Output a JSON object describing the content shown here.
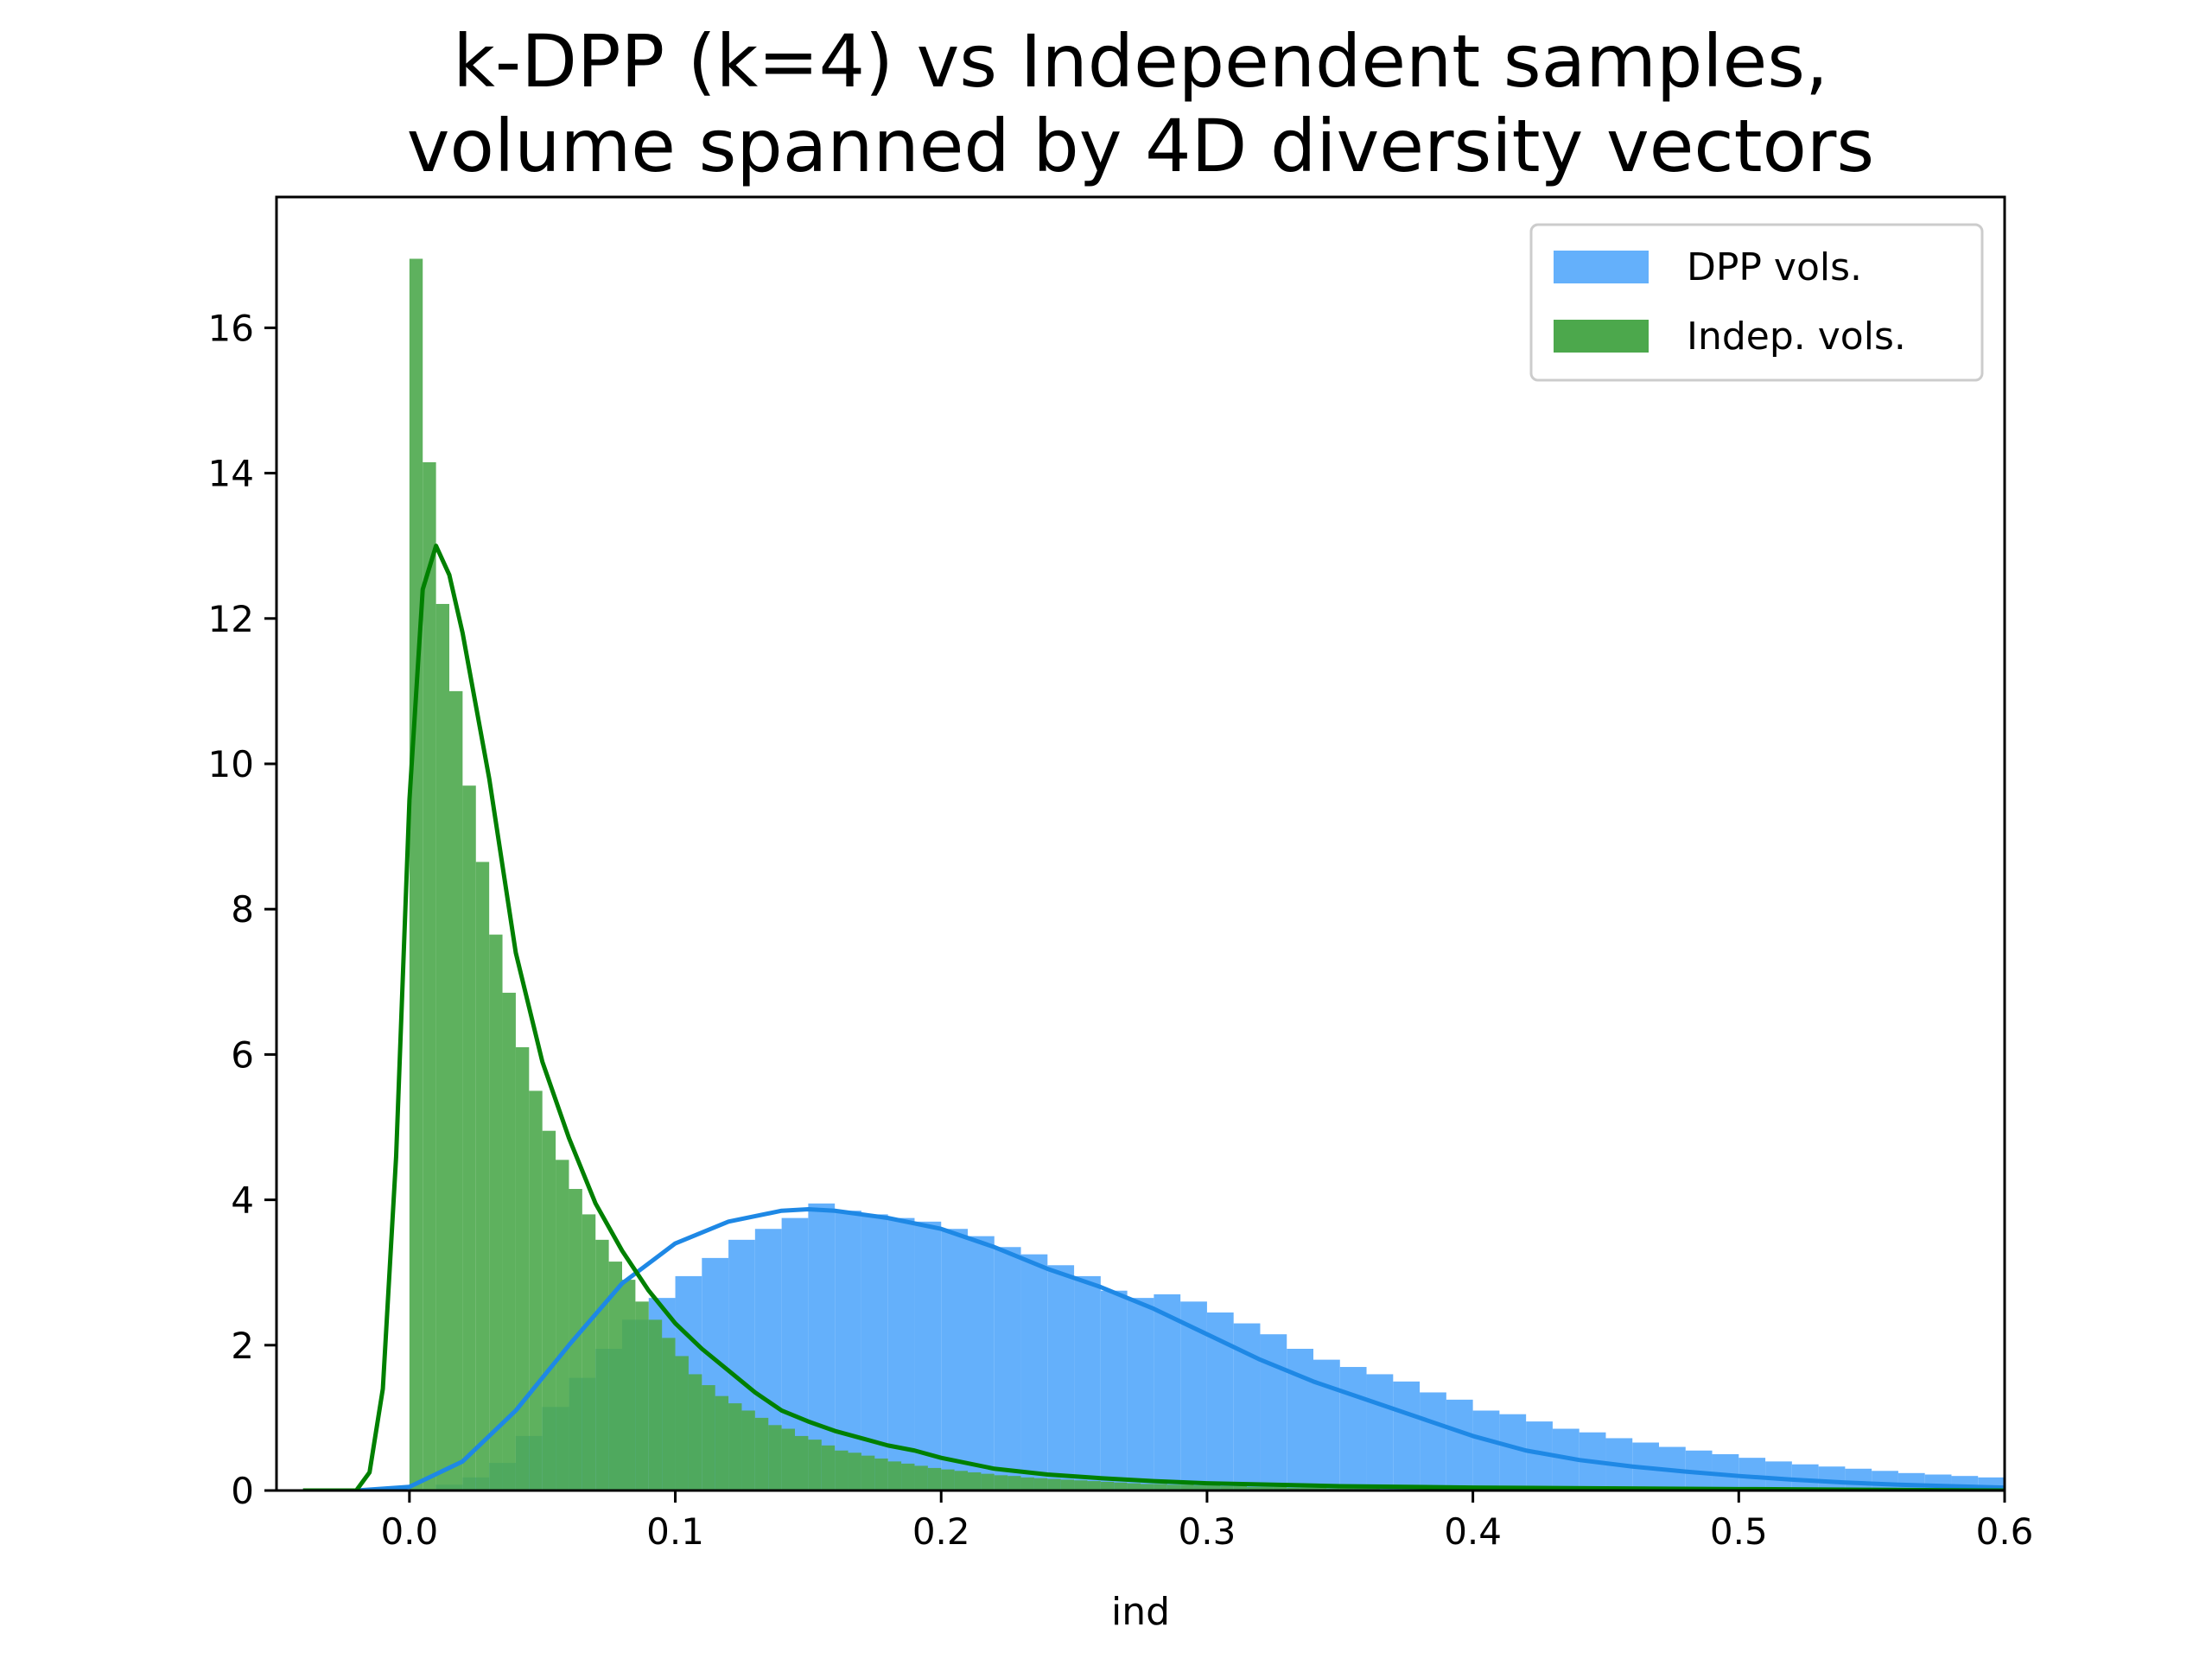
{
  "chart_data": {
    "type": "bar",
    "title_lines": [
      "k-DPP (k=4) vs Independent samples,",
      "volume spanned by 4D diversity vectors"
    ],
    "xlabel": "ind",
    "ylabel": "",
    "xlim": [
      -0.05,
      0.6
    ],
    "ylim": [
      0,
      17.8
    ],
    "xticks": [
      0.0,
      0.1,
      0.2,
      0.3,
      0.4,
      0.5,
      0.6
    ],
    "yticks": [
      0,
      2,
      4,
      6,
      8,
      10,
      12,
      14,
      16
    ],
    "xtick_labels": [
      "0.0",
      "0.1",
      "0.2",
      "0.3",
      "0.4",
      "0.5",
      "0.6"
    ],
    "ytick_labels": [
      "0",
      "2",
      "4",
      "6",
      "8",
      "10",
      "12",
      "14",
      "16"
    ],
    "legend_position": "top-right",
    "grid": false,
    "series": [
      {
        "name": "DPP vols.",
        "kind": "histogram",
        "color": "#1e88e5",
        "fill": "#64b0fb",
        "bin_edges_start": 0.0,
        "bin_width": 0.01,
        "values": [
          0.02,
          0.08,
          0.18,
          0.38,
          0.75,
          1.15,
          1.55,
          1.95,
          2.35,
          2.65,
          2.95,
          3.2,
          3.45,
          3.6,
          3.75,
          3.95,
          3.85,
          3.8,
          3.75,
          3.7,
          3.6,
          3.5,
          3.35,
          3.25,
          3.1,
          2.95,
          2.75,
          2.65,
          2.7,
          2.6,
          2.45,
          2.3,
          2.15,
          1.95,
          1.8,
          1.7,
          1.6,
          1.5,
          1.35,
          1.25,
          1.1,
          1.05,
          0.95,
          0.85,
          0.8,
          0.72,
          0.66,
          0.6,
          0.55,
          0.5,
          0.45,
          0.4,
          0.36,
          0.33,
          0.3,
          0.27,
          0.24,
          0.22,
          0.2,
          0.18
        ],
        "kde": {
          "x": [
            -0.04,
            -0.02,
            0.0,
            0.02,
            0.04,
            0.06,
            0.08,
            0.1,
            0.12,
            0.14,
            0.15,
            0.16,
            0.18,
            0.2,
            0.22,
            0.24,
            0.26,
            0.28,
            0.3,
            0.32,
            0.34,
            0.36,
            0.38,
            0.4,
            0.42,
            0.44,
            0.46,
            0.48,
            0.5,
            0.52,
            0.54,
            0.56,
            0.58,
            0.6
          ],
          "y": [
            0.0,
            0.0,
            0.05,
            0.4,
            1.1,
            2.0,
            2.85,
            3.4,
            3.7,
            3.85,
            3.87,
            3.85,
            3.75,
            3.6,
            3.35,
            3.05,
            2.8,
            2.5,
            2.15,
            1.8,
            1.5,
            1.25,
            1.0,
            0.75,
            0.55,
            0.42,
            0.33,
            0.26,
            0.2,
            0.15,
            0.11,
            0.08,
            0.06,
            0.04
          ]
        }
      },
      {
        "name": "Indep. vols.",
        "kind": "histogram",
        "color": "#008000",
        "fill": "#4ca84c",
        "bin_edges_start": 0.0,
        "bin_width": 0.005,
        "values": [
          16.95,
          14.15,
          12.2,
          11.0,
          9.7,
          8.65,
          7.65,
          6.85,
          6.1,
          5.5,
          4.95,
          4.55,
          4.15,
          3.8,
          3.45,
          3.15,
          2.9,
          2.6,
          2.35,
          2.1,
          1.85,
          1.6,
          1.45,
          1.3,
          1.2,
          1.1,
          1.0,
          0.9,
          0.85,
          0.75,
          0.7,
          0.62,
          0.55,
          0.52,
          0.48,
          0.44,
          0.4,
          0.37,
          0.34,
          0.31,
          0.29,
          0.27,
          0.25,
          0.23,
          0.21,
          0.2,
          0.18,
          0.17,
          0.16,
          0.15,
          0.14,
          0.13,
          0.12,
          0.11,
          0.1,
          0.09,
          0.09,
          0.08,
          0.08,
          0.07,
          0.07,
          0.06,
          0.06,
          0.05,
          0.05,
          0.05,
          0.04,
          0.04,
          0.04,
          0.03,
          0.03,
          0.03,
          0.03,
          0.02,
          0.02,
          0.02,
          0.02,
          0.02,
          0.02,
          0.02,
          0.01,
          0.01,
          0.01,
          0.01,
          0.01,
          0.01,
          0.01,
          0.01,
          0.01,
          0.01
        ],
        "kde": {
          "x": [
            -0.04,
            -0.02,
            -0.015,
            -0.01,
            -0.005,
            0.0,
            0.005,
            0.01,
            0.015,
            0.02,
            0.03,
            0.04,
            0.05,
            0.06,
            0.07,
            0.08,
            0.09,
            0.1,
            0.11,
            0.12,
            0.13,
            0.14,
            0.15,
            0.16,
            0.17,
            0.18,
            0.19,
            0.2,
            0.22,
            0.24,
            0.26,
            0.28,
            0.3,
            0.35,
            0.4,
            0.45,
            0.5,
            0.55,
            0.6
          ],
          "y": [
            0.0,
            0.0,
            0.25,
            1.4,
            4.6,
            9.5,
            12.4,
            13.0,
            12.6,
            11.8,
            9.8,
            7.4,
            5.9,
            4.85,
            3.95,
            3.3,
            2.75,
            2.3,
            1.95,
            1.65,
            1.35,
            1.1,
            0.95,
            0.82,
            0.72,
            0.62,
            0.55,
            0.45,
            0.3,
            0.22,
            0.17,
            0.13,
            0.1,
            0.06,
            0.04,
            0.03,
            0.02,
            0.01,
            0.0
          ]
        }
      }
    ]
  }
}
